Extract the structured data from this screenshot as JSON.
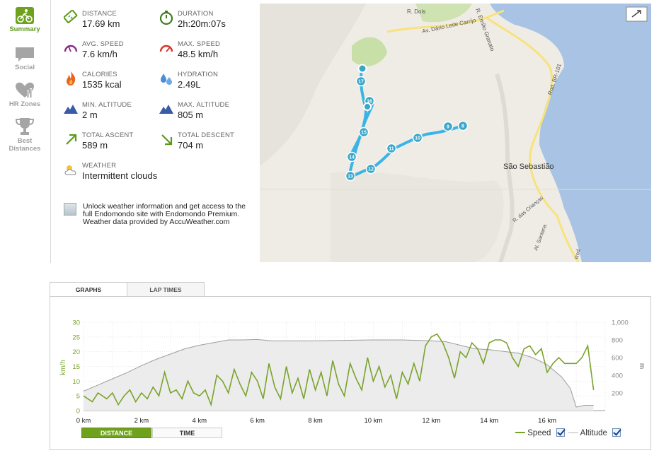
{
  "nav": {
    "items": [
      {
        "label": "Summary",
        "icon": "cyclist-icon",
        "active": true
      },
      {
        "label": "Social",
        "icon": "speech-bubble-icon"
      },
      {
        "label": "HR Zones",
        "icon": "heart-chart-icon"
      },
      {
        "label": "Best\nDistances",
        "icon": "trophy-icon"
      }
    ]
  },
  "stats": {
    "distance": {
      "label": "DISTANCE",
      "value": "17.69 km"
    },
    "duration": {
      "label": "DURATION",
      "value": "2h:20m:07s"
    },
    "avg_speed": {
      "label": "AVG. SPEED",
      "value": "7.6 km/h"
    },
    "max_speed": {
      "label": "MAX. SPEED",
      "value": "48.5 km/h"
    },
    "calories": {
      "label": "CALORIES",
      "value": "1535 kcal"
    },
    "hydration": {
      "label": "HYDRATION",
      "value": "2.49L"
    },
    "min_altitude": {
      "label": "MIN. ALTITUDE",
      "value": "2 m"
    },
    "max_altitude": {
      "label": "MAX. ALTITUDE",
      "value": "805 m"
    },
    "total_ascent": {
      "label": "TOTAL ASCENT",
      "value": "589 m"
    },
    "total_descent": {
      "label": "TOTAL DESCENT",
      "value": "704 m"
    },
    "weather": {
      "label": "WEATHER",
      "value": "Intermittent clouds"
    }
  },
  "promo": {
    "text": "Unlock weather information and get access to the full Endomondo site with Endomondo Premium.",
    "credit": "Weather data provided by AccuWeather.com"
  },
  "map": {
    "labels": {
      "street1": "R. Dois",
      "street2": "Av. Dário Leite Carrijo",
      "street3": "R. Emílio Granato",
      "highway": "Rod. BR-101",
      "city": "São Sebastião",
      "street4": "R. das Crianças",
      "street5": "Al. Santana",
      "street6": "Rod."
    },
    "markers": [
      "17",
      "16",
      "15",
      "14",
      "13",
      "12",
      "11",
      "10",
      "9",
      "8"
    ],
    "colors": {
      "water": "#a8c3e4",
      "land": "#f2efe9",
      "park": "#c8dfa8",
      "route": "#3bb3e6",
      "road": "#f7e37a"
    }
  },
  "graph": {
    "tabs": [
      "GRAPHS",
      "LAP TIMES"
    ],
    "toggle": {
      "distance": "DISTANCE",
      "time": "TIME"
    },
    "legend": {
      "speed": "Speed",
      "altitude": "Altitude"
    },
    "colors": {
      "speed": "#7aa32a",
      "altitude": "#b8b8b8",
      "altitude_fill": "#ececec"
    }
  },
  "chart_data": {
    "type": "line",
    "xlabel": "",
    "ylabel": "km/h",
    "y2label": "m",
    "xlim": [
      0,
      18
    ],
    "ylim": [
      0,
      30
    ],
    "y2lim": [
      0,
      1000
    ],
    "x_ticks": [
      "0 km",
      "2 km",
      "4 km",
      "6 km",
      "8 km",
      "10 km",
      "12 km",
      "14 km",
      "16 km"
    ],
    "y_ticks": [
      "0",
      "5",
      "10",
      "15",
      "20",
      "25",
      "30"
    ],
    "y2_ticks": [
      "200",
      "400",
      "600",
      "800",
      "1,000"
    ],
    "series": [
      {
        "name": "Speed",
        "axis": "left",
        "x": [
          0,
          0.3,
          0.5,
          0.8,
          1.0,
          1.2,
          1.4,
          1.6,
          1.8,
          2.0,
          2.2,
          2.4,
          2.6,
          2.8,
          3.0,
          3.2,
          3.4,
          3.6,
          3.8,
          4.0,
          4.2,
          4.4,
          4.6,
          4.8,
          5.0,
          5.2,
          5.4,
          5.6,
          5.8,
          6.0,
          6.2,
          6.4,
          6.6,
          6.8,
          7.0,
          7.2,
          7.4,
          7.6,
          7.8,
          8.0,
          8.2,
          8.4,
          8.6,
          8.8,
          9.0,
          9.2,
          9.4,
          9.6,
          9.8,
          10.0,
          10.2,
          10.4,
          10.6,
          10.8,
          11.0,
          11.2,
          11.4,
          11.6,
          11.8,
          12.0,
          12.2,
          12.4,
          12.6,
          12.8,
          13.0,
          13.2,
          13.4,
          13.6,
          13.8,
          14.0,
          14.2,
          14.4,
          14.6,
          14.8,
          15.0,
          15.2,
          15.4,
          15.6,
          15.8,
          16.0,
          16.2,
          16.4,
          16.6,
          16.8,
          17.0,
          17.2,
          17.4,
          17.6
        ],
        "values": [
          5,
          3,
          6,
          4,
          6,
          2,
          5,
          7,
          3,
          6,
          4,
          8,
          5,
          13,
          6,
          7,
          4,
          10,
          6,
          5,
          7,
          2,
          12,
          10,
          6,
          14,
          9,
          5,
          13,
          10,
          4,
          16,
          8,
          4,
          15,
          6,
          11,
          4,
          14,
          7,
          13,
          5,
          17,
          9,
          5,
          16,
          11,
          7,
          18,
          10,
          15,
          8,
          12,
          4,
          13,
          9,
          16,
          10,
          22,
          25,
          26,
          23,
          18,
          11,
          20,
          18,
          23,
          21,
          16,
          23,
          24,
          24,
          23,
          18,
          15,
          21,
          22,
          19,
          21,
          13,
          16,
          18,
          16,
          16,
          16,
          18,
          22,
          7
        ],
        "color": "#7aa32a"
      },
      {
        "name": "Altitude",
        "axis": "right",
        "x": [
          0,
          0.5,
          1.0,
          1.5,
          2.0,
          2.5,
          3.0,
          3.5,
          4.0,
          4.5,
          5.0,
          5.5,
          6.0,
          6.5,
          7.0,
          8.0,
          9.0,
          10.0,
          11.0,
          12.0,
          12.5,
          13.0,
          13.5,
          14.0,
          14.5,
          15.0,
          15.5,
          16.0,
          16.5,
          16.8,
          17.0,
          17.3,
          17.6
        ],
        "values": [
          220,
          290,
          360,
          430,
          510,
          580,
          640,
          700,
          740,
          770,
          800,
          800,
          805,
          790,
          790,
          790,
          795,
          800,
          800,
          790,
          780,
          740,
          700,
          690,
          670,
          650,
          600,
          520,
          380,
          250,
          40,
          60,
          60
        ],
        "color": "#b8b8b8"
      }
    ]
  }
}
